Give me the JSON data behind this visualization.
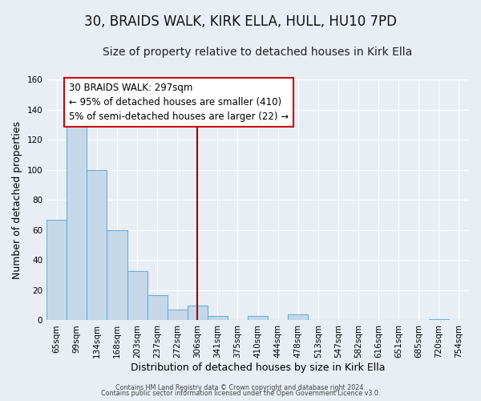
{
  "title": "30, BRAIDS WALK, KIRK ELLA, HULL, HU10 7PD",
  "subtitle": "Size of property relative to detached houses in Kirk Ella",
  "xlabel": "Distribution of detached houses by size in Kirk Ella",
  "ylabel": "Number of detached properties",
  "bin_labels": [
    "65sqm",
    "99sqm",
    "134sqm",
    "168sqm",
    "203sqm",
    "237sqm",
    "272sqm",
    "306sqm",
    "341sqm",
    "375sqm",
    "410sqm",
    "444sqm",
    "478sqm",
    "513sqm",
    "547sqm",
    "582sqm",
    "616sqm",
    "651sqm",
    "685sqm",
    "720sqm",
    "754sqm"
  ],
  "bar_values": [
    67,
    130,
    100,
    60,
    33,
    17,
    7,
    10,
    3,
    0,
    3,
    0,
    4,
    0,
    0,
    0,
    0,
    0,
    0,
    1,
    0
  ],
  "bar_color": "#c5d8ea",
  "bar_edge_color": "#6aaed6",
  "vline_x_index": 7.5,
  "vline_color": "#990000",
  "annotation_title": "30 BRAIDS WALK: 297sqm",
  "annotation_line1": "← 95% of detached houses are smaller (410)",
  "annotation_line2": "5% of semi-detached houses are larger (22) →",
  "annotation_box_color": "#ffffff",
  "annotation_box_edge": "#cc0000",
  "ylim": [
    0,
    160
  ],
  "yticks": [
    0,
    20,
    40,
    60,
    80,
    100,
    120,
    140,
    160
  ],
  "footer1": "Contains HM Land Registry data © Crown copyright and database right 2024.",
  "footer2": "Contains public sector information licensed under the Open Government Licence v3.0.",
  "bg_color": "#e8eef4",
  "title_fontsize": 12,
  "subtitle_fontsize": 10,
  "annotation_fontsize": 8.5,
  "axis_label_fontsize": 9,
  "tick_fontsize": 7.5
}
